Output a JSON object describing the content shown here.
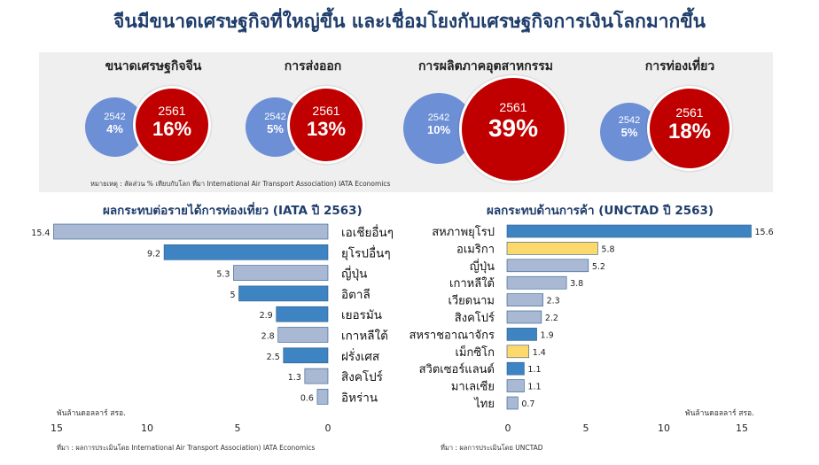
{
  "header": {
    "title": "จีนมีขนาดเศรษฐกิจที่ใหญ่ขึ้น และเชื่อมโยงกับเศรษฐกิจการเงินโลกมากขึ้น"
  },
  "circles": [
    {
      "title": "ขนาดเศรษฐกิจจีน",
      "old_year": "2542",
      "old_pct": "4%",
      "new_year": "2561",
      "new_pct": "16%"
    },
    {
      "title": "การส่งออก",
      "old_year": "2542",
      "old_pct": "5%",
      "new_year": "2561",
      "new_pct": "13%"
    },
    {
      "title": "การผลิตภาคอุตสาหกรรม",
      "old_year": "2542",
      "old_pct": "10%",
      "new_year": "2561",
      "new_pct": "39%"
    },
    {
      "title": "การท่องเที่ยว",
      "old_year": "2542",
      "old_pct": "5%",
      "new_year": "2561",
      "new_pct": "18%"
    }
  ],
  "circles_note": "หมายเหตุ : สัดส่วน % เทียบกับโลก ที่มา International Air Transport Association) IATA Economics",
  "colors": {
    "blue_bar": "#3e84c2",
    "gray_bar": "#a9b9d3",
    "yellow_bar": "#fdd86a",
    "highlight_bar": "#4a8fcb",
    "red": "#c00000",
    "blue_circle": "#6c8fd6"
  },
  "chart_data": [
    {
      "type": "bar",
      "orientation": "horizontal",
      "title": "ผลกระทบต่อรายได้การท่องเที่ยว (IATA ปี 2563)",
      "unit_label": "พันล้านดอลลาร์ สรอ.",
      "categories": [
        "เอเชียอื่นๆ",
        "ยุโรปอื่นๆ",
        "ญี่ปุ่น",
        "อิตาลี",
        "เยอรมัน",
        "เกาหลีใต้",
        "ฝรั่งเศส",
        "สิงคโปร์",
        "อิหร่าน"
      ],
      "values": [
        15.4,
        9.2,
        5.3,
        5,
        2.9,
        2.8,
        2.5,
        1.3,
        0.6
      ],
      "value_labels": [
        "15.4",
        "9.2",
        "5.3",
        "5",
        "2.9",
        "2.8",
        "2.5",
        "1.3",
        "0.6"
      ],
      "bar_colors": [
        "gray",
        "blue",
        "gray",
        "blue",
        "blue",
        "gray",
        "blue",
        "gray",
        "gray"
      ],
      "xlim": [
        15,
        0
      ],
      "xticks": [
        "15",
        "10",
        "5",
        "0"
      ],
      "source": "ที่มา : ผลการประเมินโดย International Air Transport Association) IATA Economics"
    },
    {
      "type": "bar",
      "orientation": "horizontal",
      "title": "ผลกระทบด้านการค้า (UNCTAD ปี 2563)",
      "unit_label": "พันล้านดอลลาร์ สรอ.",
      "categories": [
        "สหภาพยุโรป",
        "อเมริกา",
        "ญี่ปุ่น",
        "เกาหลีใต้",
        "เวียดนาม",
        "สิงคโปร์",
        "สหราชอาณาจักร",
        "เม็กซิโก",
        "สวิตเซอร์แลนด์",
        "มาเลเซีย",
        "ไทย"
      ],
      "values": [
        15.6,
        5.8,
        5.2,
        3.8,
        2.3,
        2.2,
        1.9,
        1.4,
        1.1,
        1.1,
        0.7
      ],
      "value_labels": [
        "15.6",
        "5.8",
        "5.2",
        "3.8",
        "2.3",
        "2.2",
        "1.9",
        "1.4",
        "1.1",
        "1.1",
        "0.7"
      ],
      "bar_colors": [
        "blue",
        "yellow",
        "gray",
        "gray",
        "gray",
        "gray",
        "blue",
        "yellow",
        "blue",
        "gray",
        "gray"
      ],
      "xlim": [
        0,
        15
      ],
      "xticks": [
        "0",
        "5",
        "10",
        "15"
      ],
      "source": "ที่มา : ผลการประเมินโดย UNCTAD"
    }
  ]
}
